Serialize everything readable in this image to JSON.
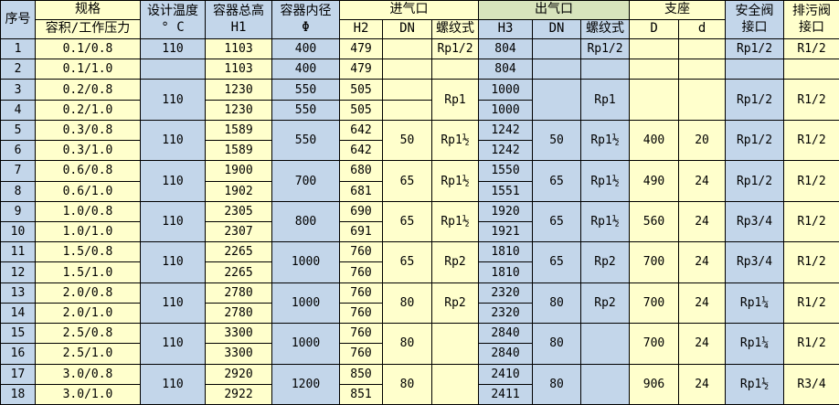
{
  "colors": {
    "cell_blue": "#c3d6ea",
    "cell_yellow": "#ffffcc",
    "outlet_header_green": "#d8e4bc",
    "grid_line": "#000000",
    "text": "#000000"
  },
  "table": {
    "headers": {
      "serial": "序号",
      "spec_group": "规格",
      "spec_sub": "容积/工作压力",
      "design_temp_l1": "设计温度",
      "design_temp_l2": "° C",
      "total_height_l1": "容器总高",
      "total_height_l2": "H1",
      "inner_dia_l1": "容器内径",
      "inner_dia_l2": "Φ",
      "inlet_group": "进气口",
      "outlet_group": "出气口",
      "support_group": "支座",
      "h2": "H2",
      "dn_in": "DN",
      "thread_in": "螺纹式",
      "h3": "H3",
      "dn_out": "DN",
      "thread_out": "螺纹式",
      "support_D": "D",
      "support_d": "d",
      "safety_l1": "安全阀",
      "safety_l2": "接口",
      "drain_l1": "排污阀",
      "drain_l2": "接口"
    },
    "rows": [
      [
        "1",
        "0.1/0.8",
        "110",
        "1103",
        "400",
        "479",
        "",
        "Rp1/2",
        "804",
        "",
        "Rp1/2",
        "",
        "",
        "Rp1/2",
        "R1/2"
      ],
      [
        "2",
        "0.1/1.0",
        "",
        "1103",
        "400",
        "479",
        "",
        "",
        "804",
        "",
        "",
        "",
        "",
        "",
        ""
      ],
      [
        "3",
        "0.2/0.8",
        [
          "110",
          2
        ],
        "1230",
        "550",
        "505",
        "",
        [
          "Rp1",
          2
        ],
        "1000",
        [
          "",
          2
        ],
        [
          "Rp1",
          2
        ],
        [
          "",
          2
        ],
        [
          "",
          2
        ],
        [
          "Rp1/2",
          2
        ],
        [
          "R1/2",
          2
        ]
      ],
      [
        "4",
        "0.2/1.0",
        null,
        "1230",
        "550",
        "505",
        "",
        null,
        "1000",
        null,
        null,
        null,
        null,
        null,
        null
      ],
      [
        "5",
        "0.3/0.8",
        [
          "110",
          2
        ],
        "1589",
        [
          "550",
          2
        ],
        "642",
        [
          "50",
          2
        ],
        [
          "Rp1½",
          2
        ],
        "1242",
        [
          "50",
          2
        ],
        [
          "Rp1½",
          2
        ],
        [
          "400",
          2
        ],
        [
          "20",
          2
        ],
        [
          "Rp1/2",
          2
        ],
        [
          "R1/2",
          2
        ]
      ],
      [
        "6",
        "0.3/1.0",
        null,
        "1589",
        null,
        "642",
        null,
        null,
        "1242",
        null,
        null,
        null,
        null,
        null,
        null
      ],
      [
        "7",
        "0.6/0.8",
        [
          "110",
          2
        ],
        "1900",
        [
          "700",
          2
        ],
        "680",
        [
          "65",
          2
        ],
        [
          "Rp1½",
          2
        ],
        "1550",
        [
          "65",
          2
        ],
        [
          "Rp1½",
          2
        ],
        [
          "490",
          2
        ],
        [
          "24",
          2
        ],
        [
          "Rp1/2",
          2
        ],
        [
          "R1/2",
          2
        ]
      ],
      [
        "8",
        "0.6/1.0",
        null,
        "1902",
        null,
        "681",
        null,
        null,
        "1551",
        null,
        null,
        null,
        null,
        null,
        null
      ],
      [
        "9",
        "1.0/0.8",
        [
          "110",
          2
        ],
        "2305",
        [
          "800",
          2
        ],
        "690",
        [
          "65",
          2
        ],
        [
          "Rp1½",
          2
        ],
        "1920",
        [
          "65",
          2
        ],
        [
          "Rp1½",
          2
        ],
        [
          "560",
          2
        ],
        [
          "24",
          2
        ],
        [
          "Rp3/4",
          2
        ],
        [
          "R1/2",
          2
        ]
      ],
      [
        "10",
        "1.0/1.0",
        null,
        "2307",
        null,
        "691",
        null,
        null,
        "1921",
        null,
        null,
        null,
        null,
        null,
        null
      ],
      [
        "11",
        "1.5/0.8",
        [
          "110",
          2
        ],
        "2265",
        [
          "1000",
          2
        ],
        "760",
        [
          "65",
          2
        ],
        [
          "Rp2",
          2
        ],
        "1810",
        [
          "65",
          2
        ],
        [
          "Rp2",
          2
        ],
        [
          "700",
          2
        ],
        [
          "24",
          2
        ],
        [
          "Rp3/4",
          2
        ],
        [
          "R1/2",
          2
        ]
      ],
      [
        "12",
        "1.5/1.0",
        null,
        "2265",
        null,
        "760",
        null,
        null,
        "1810",
        null,
        null,
        null,
        null,
        null,
        null
      ],
      [
        "13",
        "2.0/0.8",
        [
          "110",
          2
        ],
        "2780",
        [
          "1000",
          2
        ],
        "760",
        [
          "80",
          2
        ],
        [
          "Rp2",
          2
        ],
        "2320",
        [
          "80",
          2
        ],
        [
          "Rp2",
          2
        ],
        [
          "700",
          2
        ],
        [
          "24",
          2
        ],
        [
          "Rp1¼",
          2
        ],
        [
          "R1/2",
          2
        ]
      ],
      [
        "14",
        "2.0/1.0",
        null,
        "2780",
        null,
        "760",
        null,
        null,
        "2320",
        null,
        null,
        null,
        null,
        null,
        null
      ],
      [
        "15",
        "2.5/0.8",
        [
          "110",
          2
        ],
        "3300",
        [
          "1000",
          2
        ],
        "760",
        [
          "80",
          2
        ],
        [
          "",
          2
        ],
        "2840",
        [
          "80",
          2
        ],
        [
          "",
          2
        ],
        [
          "700",
          2
        ],
        [
          "24",
          2
        ],
        [
          "Rp1¼",
          2
        ],
        [
          "R1/2",
          2
        ]
      ],
      [
        "16",
        "2.5/1.0",
        null,
        "3300",
        null,
        "760",
        null,
        null,
        "2840",
        null,
        null,
        null,
        null,
        null,
        null
      ],
      [
        "17",
        "3.0/0.8",
        [
          "110",
          2
        ],
        "2920",
        [
          "1200",
          2
        ],
        "850",
        [
          "80",
          2
        ],
        [
          "",
          2
        ],
        "2410",
        [
          "80",
          2
        ],
        [
          "",
          2
        ],
        [
          "906",
          2
        ],
        [
          "24",
          2
        ],
        [
          "Rp1½",
          2
        ],
        [
          "R3/4",
          2
        ]
      ],
      [
        "18",
        "3.0/1.0",
        null,
        "2922",
        null,
        "851",
        null,
        null,
        "2411",
        null,
        null,
        null,
        null,
        null,
        null
      ]
    ]
  }
}
